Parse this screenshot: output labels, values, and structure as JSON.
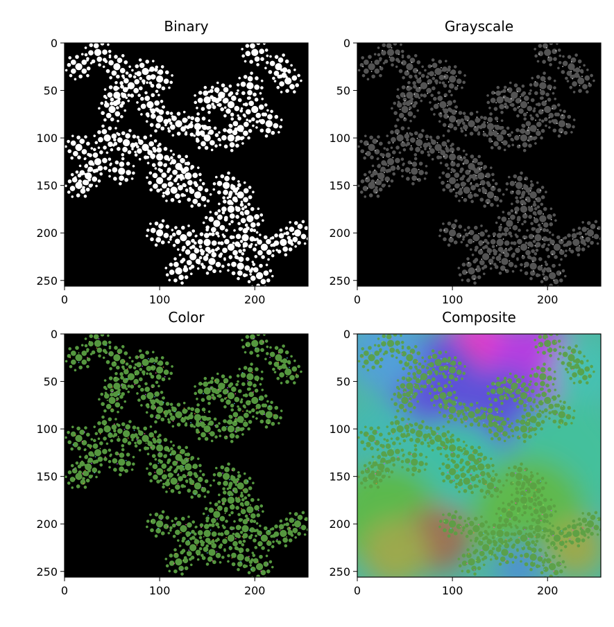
{
  "figure": {
    "background": "#ffffff"
  },
  "chart_data": [
    {
      "type": "heatmap",
      "title": "Binary",
      "xlim": [
        0,
        256
      ],
      "ylim": [
        256,
        0
      ],
      "xticks": [
        "0",
        "100",
        "200"
      ],
      "yticks": [
        "0",
        "50",
        "100",
        "150",
        "200",
        "250"
      ],
      "background": "#000000",
      "fractal_color": "#ffffff",
      "fractal_opacity": 1.0,
      "fractal_style": "solid"
    },
    {
      "type": "heatmap",
      "title": "Grayscale",
      "xlim": [
        0,
        256
      ],
      "ylim": [
        256,
        0
      ],
      "xticks": [
        "0",
        "100",
        "200"
      ],
      "yticks": [
        "0",
        "50",
        "100",
        "150",
        "200",
        "250"
      ],
      "background": "#000000",
      "fractal_color": "#9a9a9a",
      "fractal_opacity": 0.55,
      "fractal_style": "sparkle"
    },
    {
      "type": "heatmap",
      "title": "Color",
      "xlim": [
        0,
        256
      ],
      "ylim": [
        256,
        0
      ],
      "xticks": [
        "0",
        "100",
        "200"
      ],
      "yticks": [
        "0",
        "50",
        "100",
        "150",
        "200",
        "250"
      ],
      "background": "#000000",
      "fractal_color": "#5aa043",
      "fractal_opacity": 0.95,
      "fractal_style": "color"
    },
    {
      "type": "heatmap",
      "title": "Composite",
      "xlim": [
        0,
        256
      ],
      "ylim": [
        256,
        0
      ],
      "xticks": [
        "0",
        "100",
        "200"
      ],
      "yticks": [
        "0",
        "50",
        "100",
        "150",
        "200",
        "250"
      ],
      "background": "noise",
      "fractal_color": "#5aa043",
      "fractal_opacity": 0.9,
      "fractal_style": "color",
      "noise_blobs": [
        {
          "x": 130,
          "y": 25,
          "r": 45,
          "color": "#e03ad2"
        },
        {
          "x": 115,
          "y": 22,
          "r": 15,
          "color": "#e8356a"
        },
        {
          "x": 185,
          "y": 30,
          "r": 45,
          "color": "#b43be0"
        },
        {
          "x": 80,
          "y": 50,
          "r": 50,
          "color": "#5a4fd8"
        },
        {
          "x": 150,
          "y": 80,
          "r": 45,
          "color": "#5a4fd8"
        },
        {
          "x": 30,
          "y": 20,
          "r": 40,
          "color": "#4f9ed8"
        },
        {
          "x": 240,
          "y": 40,
          "r": 35,
          "color": "#42c0b0"
        },
        {
          "x": 25,
          "y": 110,
          "r": 40,
          "color": "#40b8b0"
        },
        {
          "x": 220,
          "y": 130,
          "r": 60,
          "color": "#3fbf9a"
        },
        {
          "x": 100,
          "y": 150,
          "r": 60,
          "color": "#3dbda4"
        },
        {
          "x": 30,
          "y": 190,
          "r": 55,
          "color": "#58b84a"
        },
        {
          "x": 180,
          "y": 190,
          "r": 60,
          "color": "#5cb848"
        },
        {
          "x": 85,
          "y": 215,
          "r": 35,
          "color": "#9a6e52"
        },
        {
          "x": 40,
          "y": 230,
          "r": 35,
          "color": "#9aa84a"
        },
        {
          "x": 230,
          "y": 225,
          "r": 30,
          "color": "#9aa84a"
        },
        {
          "x": 170,
          "y": 245,
          "r": 25,
          "color": "#4a8fd0"
        }
      ]
    }
  ]
}
